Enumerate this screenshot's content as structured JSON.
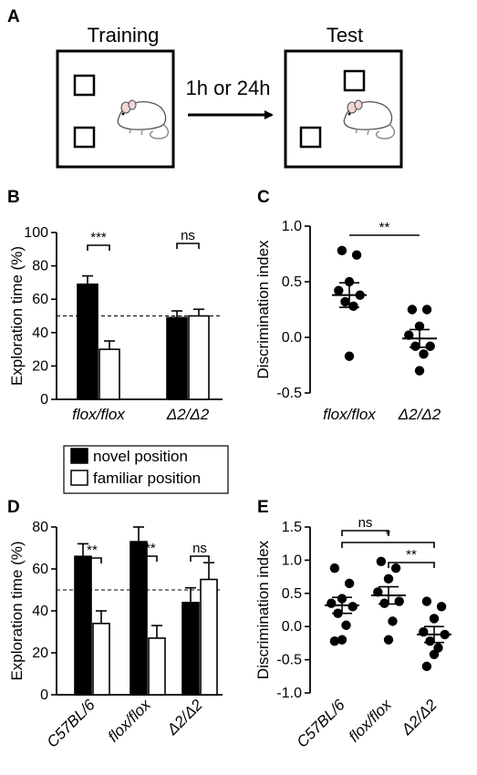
{
  "panel_labels": [
    "A",
    "B",
    "C",
    "D",
    "E"
  ],
  "schematic": {
    "training_label": "Training",
    "test_label": "Test",
    "arrow_label": "1h or 24h"
  },
  "legend": {
    "novel": "novel position",
    "familiar": "familiar position"
  },
  "colors": {
    "novel": "#000000",
    "familiar": "#ffffff",
    "ink": "#000000"
  },
  "chart_data": [
    {
      "id": "B",
      "type": "bar",
      "ylabel": "Exploration time (%)",
      "ylim": [
        0,
        100
      ],
      "yticks": [
        "0",
        "20",
        "40",
        "60",
        "80",
        "100"
      ],
      "categories": [
        "flox/flox",
        "Δ2/Δ2"
      ],
      "series": [
        {
          "name": "novel position",
          "values": [
            69,
            49
          ],
          "errors": [
            5,
            4
          ]
        },
        {
          "name": "familiar position",
          "values": [
            30,
            50
          ],
          "errors": [
            5,
            4
          ]
        }
      ],
      "chance_line": 50,
      "significance": [
        "***",
        "ns"
      ]
    },
    {
      "id": "C",
      "type": "scatter",
      "ylabel": "Discrimination index",
      "ylim": [
        -0.5,
        1.0
      ],
      "yticks": [
        "-0.5",
        "0.0",
        "0.5",
        "1.0"
      ],
      "categories": [
        "flox/flox",
        "Δ2/Δ2"
      ],
      "points": [
        [
          0.78,
          0.74,
          0.5,
          0.42,
          0.38,
          0.32,
          0.28,
          -0.17
        ],
        [
          0.25,
          0.25,
          0.1,
          0.02,
          -0.08,
          -0.08,
          -0.15,
          -0.3
        ]
      ],
      "mean": [
        0.38,
        -0.01
      ],
      "sem": [
        0.11,
        0.08
      ],
      "significance": [
        "**"
      ]
    },
    {
      "id": "D",
      "type": "bar",
      "ylabel": "Exploration time (%)",
      "ylim": [
        0,
        80
      ],
      "yticks": [
        "0",
        "20",
        "40",
        "60",
        "80"
      ],
      "categories": [
        "C57BL/6",
        "flox/flox",
        "Δ2/Δ2"
      ],
      "series": [
        {
          "name": "novel position",
          "values": [
            66,
            73,
            44
          ],
          "errors": [
            6,
            7,
            7
          ]
        },
        {
          "name": "familiar position",
          "values": [
            34,
            27,
            55
          ],
          "errors": [
            6,
            6,
            8
          ]
        }
      ],
      "chance_line": 50,
      "significance": [
        "**",
        "***",
        "ns"
      ]
    },
    {
      "id": "E",
      "type": "scatter",
      "ylabel": "Discrimination index",
      "ylim": [
        -1.0,
        1.5
      ],
      "yticks": [
        "-1.0",
        "-0.5",
        "0.0",
        "0.5",
        "1.0",
        "1.5"
      ],
      "categories": [
        "C57BL/6",
        "flox/flox",
        "Δ2/Δ2"
      ],
      "points": [
        [
          0.88,
          0.65,
          0.42,
          0.35,
          0.3,
          0.2,
          0.02,
          -0.2,
          -0.22
        ],
        [
          0.98,
          0.88,
          0.72,
          0.52,
          0.38,
          0.35,
          0.08,
          -0.2
        ],
        [
          0.38,
          0.3,
          0.12,
          -0.08,
          -0.12,
          -0.22,
          -0.32,
          -0.42,
          -0.6
        ]
      ],
      "mean": [
        0.32,
        0.47,
        -0.12
      ],
      "sem": [
        0.12,
        0.13,
        0.12
      ],
      "significance": [
        "ns",
        "*",
        "**"
      ]
    }
  ]
}
